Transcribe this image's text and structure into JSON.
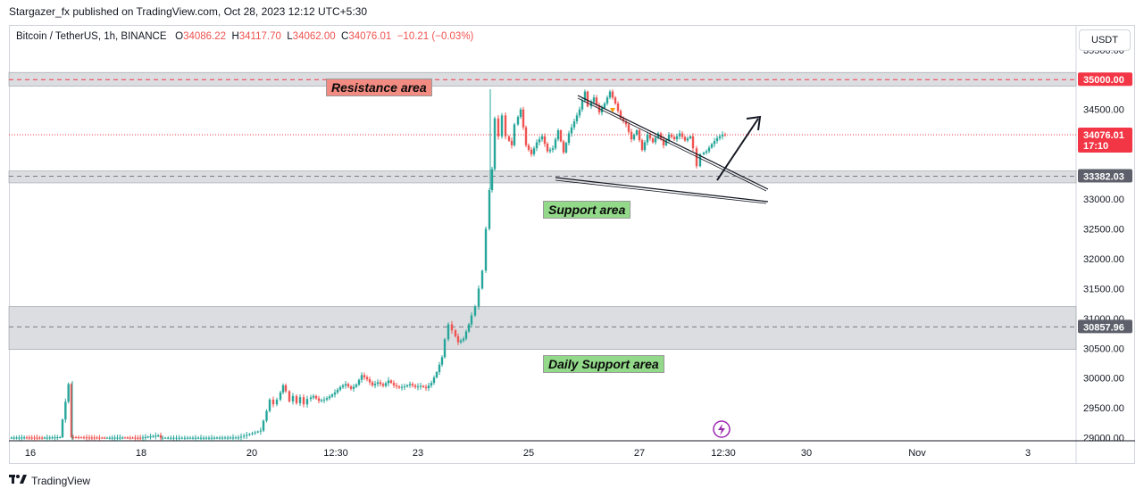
{
  "publish_line": "Stargazer_fx published on TradingView.com, Oct 28, 2023 12:12 UTC+5:30",
  "symbol": {
    "name": "Bitcoin / TetherUS, 1h, BINANCE",
    "o_label": "O",
    "o_value": "34086.22",
    "h_label": "H",
    "h_value": "34117.70",
    "l_label": "L",
    "l_value": "34062.00",
    "c_label": "C",
    "c_value": "34076.01",
    "change": "−10.21 (−0.03%)"
  },
  "currency_button": "USDT",
  "footer_brand": "TradingView",
  "colors": {
    "up": "#26a69a",
    "up_fill": "#4caf50",
    "down": "#ef5350",
    "resistance_label_bg": "#f28b82",
    "support_label_bg": "#93d98a",
    "zone_fill": "#d6d7da",
    "price_badge_red": "#f23645",
    "level_badge_gray": "#5d606b"
  },
  "chart_data": {
    "type": "candlestick",
    "x_tick_labels": [
      "16",
      "18",
      "20",
      "12:30",
      "23",
      "25",
      "27",
      "12:30",
      "30",
      "Nov",
      "3"
    ],
    "y_tick_labels": [
      "35500.00",
      "34500.00",
      "34000.00",
      "33000.00",
      "32500.00",
      "32000.00",
      "31500.00",
      "31000.00",
      "30500.00",
      "30000.00",
      "29500.00",
      "29000.00"
    ],
    "ylim": [
      28950,
      35900
    ],
    "current_price": {
      "value": "34076.01",
      "countdown": "17:10"
    },
    "levels": [
      {
        "value": 35000.0,
        "label": "35000.00",
        "style": "red"
      },
      {
        "value": 33382.03,
        "label": "33382.03",
        "style": "gray"
      },
      {
        "value": 30857.96,
        "label": "30857.96",
        "style": "gray"
      }
    ],
    "zones": [
      {
        "label": "Resistance area",
        "low": 34890,
        "high": 35120
      },
      {
        "label": "Support area",
        "low": 33270,
        "high": 33470
      },
      {
        "label": "Daily Support area",
        "low": 30480,
        "high": 31200
      }
    ],
    "price_path": [
      [
        0,
        29000
      ],
      [
        20,
        29005
      ],
      [
        40,
        29000
      ],
      [
        60,
        29010
      ],
      [
        70,
        29900
      ],
      [
        72,
        29010
      ],
      [
        90,
        29005
      ],
      [
        110,
        29000
      ],
      [
        130,
        29003
      ],
      [
        150,
        29000
      ],
      [
        170,
        29040
      ],
      [
        172,
        29000
      ],
      [
        200,
        29000
      ],
      [
        230,
        29000
      ],
      [
        260,
        29005
      ],
      [
        285,
        29120
      ],
      [
        292,
        29450
      ],
      [
        296,
        29640
      ],
      [
        300,
        29560
      ],
      [
        304,
        29640
      ],
      [
        310,
        29880
      ],
      [
        314,
        29780
      ],
      [
        318,
        29610
      ],
      [
        322,
        29700
      ],
      [
        326,
        29580
      ],
      [
        330,
        29680
      ],
      [
        334,
        29560
      ],
      [
        338,
        29650
      ],
      [
        344,
        29700
      ],
      [
        350,
        29620
      ],
      [
        356,
        29640
      ],
      [
        362,
        29690
      ],
      [
        368,
        29760
      ],
      [
        374,
        29850
      ],
      [
        380,
        29900
      ],
      [
        386,
        29820
      ],
      [
        392,
        29890
      ],
      [
        398,
        30050
      ],
      [
        404,
        29980
      ],
      [
        410,
        29880
      ],
      [
        416,
        29930
      ],
      [
        422,
        29870
      ],
      [
        428,
        29960
      ],
      [
        434,
        29880
      ],
      [
        440,
        29840
      ],
      [
        446,
        29860
      ],
      [
        452,
        29900
      ],
      [
        458,
        29850
      ],
      [
        464,
        29870
      ],
      [
        470,
        29830
      ],
      [
        476,
        29920
      ],
      [
        482,
        30100
      ],
      [
        488,
        30350
      ],
      [
        492,
        30650
      ],
      [
        496,
        30900
      ],
      [
        500,
        30800
      ],
      [
        506,
        30600
      ],
      [
        512,
        30660
      ],
      [
        518,
        30900
      ],
      [
        522,
        31050
      ],
      [
        526,
        31200
      ],
      [
        530,
        31500
      ],
      [
        534,
        31800
      ],
      [
        538,
        32500
      ],
      [
        541,
        33150
      ],
      [
        544,
        33500
      ],
      [
        548,
        34350
      ],
      [
        552,
        34050
      ],
      [
        556,
        34400
      ],
      [
        560,
        34050
      ],
      [
        566,
        33900
      ],
      [
        570,
        34250
      ],
      [
        576,
        34500
      ],
      [
        582,
        33900
      ],
      [
        588,
        33750
      ],
      [
        594,
        33950
      ],
      [
        600,
        34050
      ],
      [
        606,
        33800
      ],
      [
        612,
        33850
      ],
      [
        618,
        34150
      ],
      [
        624,
        33780
      ],
      [
        630,
        34100
      ],
      [
        636,
        34300
      ],
      [
        642,
        34500
      ],
      [
        648,
        34800
      ],
      [
        652,
        34550
      ],
      [
        658,
        34700
      ],
      [
        664,
        34450
      ],
      [
        670,
        34600
      ],
      [
        676,
        34800
      ],
      [
        682,
        34600
      ],
      [
        688,
        34350
      ],
      [
        694,
        34250
      ],
      [
        700,
        34000
      ],
      [
        706,
        34150
      ],
      [
        712,
        33820
      ],
      [
        718,
        34080
      ],
      [
        724,
        33950
      ],
      [
        730,
        34100
      ],
      [
        736,
        33900
      ],
      [
        742,
        34080
      ],
      [
        748,
        34000
      ],
      [
        754,
        34100
      ],
      [
        760,
        33980
      ],
      [
        766,
        34050
      ],
      [
        770,
        33850
      ],
      [
        774,
        33550
      ],
      [
        778,
        33750
      ],
      [
        784,
        33800
      ],
      [
        790,
        33920
      ],
      [
        796,
        34020
      ],
      [
        802,
        34080
      ],
      [
        806,
        34076
      ]
    ]
  },
  "annotations": {
    "zone_labels": [
      "Resistance area",
      "Support area",
      "Daily Support area"
    ]
  }
}
